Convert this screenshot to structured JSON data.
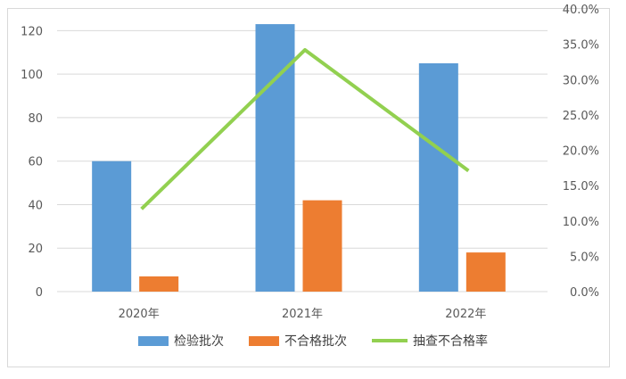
{
  "chart_data": {
    "type": "bar",
    "categories": [
      "2020年",
      "2021年",
      "2022年"
    ],
    "series": [
      {
        "name": "检验批次",
        "type": "bar",
        "axis": "left",
        "values": [
          60,
          123,
          105
        ],
        "color": "#5b9bd5"
      },
      {
        "name": "不合格批次",
        "type": "bar",
        "axis": "left",
        "values": [
          7,
          42,
          18
        ],
        "color": "#ed7d31"
      },
      {
        "name": "抽查不合格率",
        "type": "line",
        "axis": "right",
        "values": [
          0.117,
          0.342,
          0.171
        ],
        "color": "#92d050"
      }
    ],
    "y_left": {
      "ticks": [
        0,
        20,
        40,
        60,
        80,
        100,
        120
      ],
      "ylim": [
        0,
        130
      ]
    },
    "y_right": {
      "ticks": [
        "0.0%",
        "5.0%",
        "10.0%",
        "15.0%",
        "20.0%",
        "25.0%",
        "30.0%",
        "35.0%",
        "40.0%"
      ],
      "ylim": [
        0,
        0.4
      ]
    },
    "grid": true,
    "legend_placement": "bottom"
  }
}
